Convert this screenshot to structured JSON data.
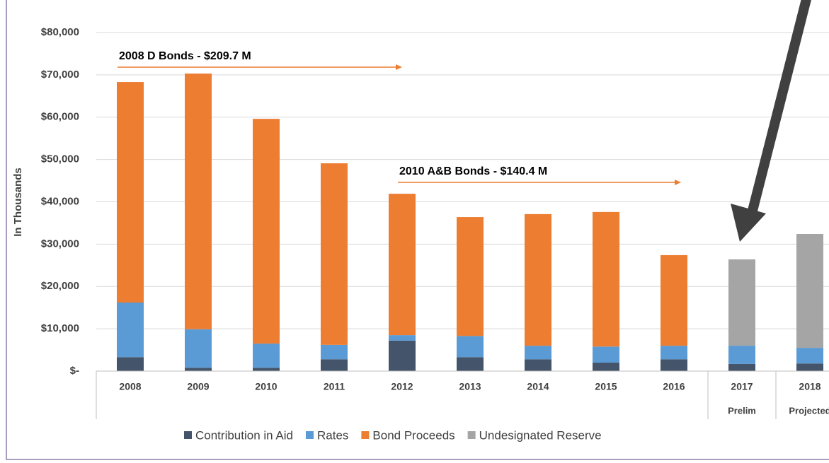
{
  "chart_data": {
    "type": "stacked_bar",
    "y_label": "In Thousands",
    "categories": [
      "2008",
      "2009",
      "2010",
      "2011",
      "2012",
      "2013",
      "2014",
      "2015",
      "2016",
      "2017",
      "2018"
    ],
    "sublabels": [
      null,
      null,
      null,
      null,
      null,
      null,
      null,
      null,
      null,
      "Prelim",
      "Projected"
    ],
    "series": [
      {
        "name": "Contribution in Aid",
        "color": "#44546a",
        "values": [
          3300,
          800,
          800,
          2800,
          7200,
          3300,
          2800,
          2000,
          2800,
          1700,
          1800
        ]
      },
      {
        "name": "Rates",
        "color": "#5b9bd5",
        "values": [
          12900,
          9100,
          5700,
          3400,
          1300,
          5000,
          3200,
          3800,
          3200,
          4300,
          3700
        ]
      },
      {
        "name": "Bond Proceeds",
        "color": "#ed7d31",
        "values": [
          52100,
          60400,
          53100,
          42900,
          33400,
          28100,
          31100,
          31800,
          21400,
          0,
          0
        ]
      },
      {
        "name": "Undesignated Reserve",
        "color": "#a5a5a5",
        "values": [
          0,
          0,
          0,
          0,
          0,
          0,
          0,
          0,
          0,
          20400,
          26900
        ]
      }
    ],
    "ylim": [
      0,
      80000
    ],
    "yticks": [
      {
        "value": 0,
        "label": "$-"
      },
      {
        "value": 10000,
        "label": "$10,000"
      },
      {
        "value": 20000,
        "label": "$20,000"
      },
      {
        "value": 30000,
        "label": "$30,000"
      },
      {
        "value": 40000,
        "label": "$40,000"
      },
      {
        "value": 50000,
        "label": "$50,000"
      },
      {
        "value": 60000,
        "label": "$60,000"
      },
      {
        "value": 70000,
        "label": "$70,000"
      },
      {
        "value": 80000,
        "label": "$80,000"
      }
    ],
    "grid": true,
    "annotations": [
      "2008 D Bonds - $209.7 M",
      "2010 A&B Bonds - $140.4 M"
    ]
  }
}
